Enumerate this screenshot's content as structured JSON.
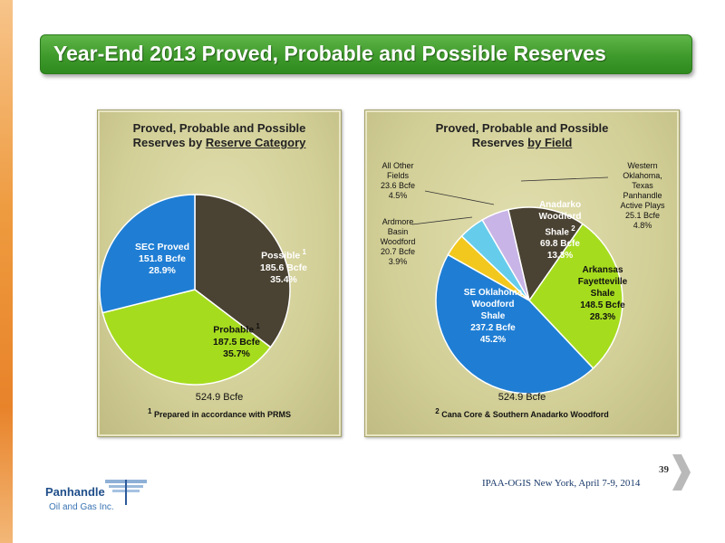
{
  "slide": {
    "title": "Year-End 2013 Proved, Probable and Possible Reserves",
    "footer": "IPAA-OGIS New York, April 7-9, 2014",
    "page_number": "39",
    "logo": {
      "name": "Panhandle",
      "sub": "Oil and Gas Inc."
    }
  },
  "chart_data": [
    {
      "type": "pie",
      "title_line1": "Proved, Probable and Possible",
      "title_line2_prefix": "Reserves by ",
      "title_line2_underlined": "Reserve Category",
      "total": "524.9 Bcfe",
      "footnote_marker": "1",
      "footnote": "Prepared in accordance with PRMS",
      "slices": [
        {
          "label": "Possible",
          "sup": "1",
          "value_text": "185.6 Bcfe",
          "pct_text": "35.4%",
          "value": 185.6,
          "color": "#4a4232",
          "text_color": "#ffffff"
        },
        {
          "label": "Probable",
          "sup": "1",
          "value_text": "187.5 Bcfe",
          "pct_text": "35.7%",
          "value": 187.5,
          "color": "#a6dc1e",
          "text_color": "#111111"
        },
        {
          "label": "SEC Proved",
          "sup": "",
          "value_text": "151.8 Bcfe",
          "pct_text": "28.9%",
          "value": 151.8,
          "color": "#1f7ed4",
          "text_color": "#ffffff"
        }
      ]
    },
    {
      "type": "pie",
      "title_line1": "Proved, Probable and Possible",
      "title_line2_prefix": "Reserves ",
      "title_line2_underlined": "by Field",
      "total": "524.9 Bcfe",
      "footnote_marker": "2",
      "footnote": "Cana Core & Southern Anadarko Woodford",
      "slices": [
        {
          "lines": [
            "Anadarko",
            "Woodford",
            "Shale"
          ],
          "sup": "2",
          "value_text": "69.8 Bcfe",
          "pct_text": "13.3%",
          "value": 69.8,
          "color": "#4a4232",
          "text_color": "#ffffff"
        },
        {
          "lines": [
            "Arkansas",
            "Fayetteville",
            "Shale"
          ],
          "sup": "",
          "value_text": "148.5 Bcfe",
          "pct_text": "28.3%",
          "value": 148.5,
          "color": "#a6dc1e",
          "text_color": "#111111"
        },
        {
          "lines": [
            "SE Oklahoma",
            "Woodford",
            "Shale"
          ],
          "sup": "",
          "value_text": "237.2 Bcfe",
          "pct_text": "45.2%",
          "value": 237.2,
          "color": "#1f7ed4",
          "text_color": "#ffffff"
        },
        {
          "lines": [
            "Ardmore",
            "Basin",
            "Woodford"
          ],
          "sup": "",
          "value_text": "20.7 Bcfe",
          "pct_text": "3.9%",
          "value": 20.7,
          "color": "#f2c81e",
          "text_color": "#111111"
        },
        {
          "lines": [
            "All Other",
            "Fields"
          ],
          "sup": "",
          "value_text": "23.6 Bcfe",
          "pct_text": "4.5%",
          "value": 23.6,
          "color": "#66ccec",
          "text_color": "#111111"
        },
        {
          "lines": [
            "Western",
            "Oklahoma,",
            "Texas",
            "Panhandle",
            "Active Plays"
          ],
          "sup": "",
          "value_text": "25.1 Bcfe",
          "pct_text": "4.8%",
          "value": 25.1,
          "color": "#c8b4e6",
          "text_color": "#111111"
        }
      ]
    }
  ]
}
